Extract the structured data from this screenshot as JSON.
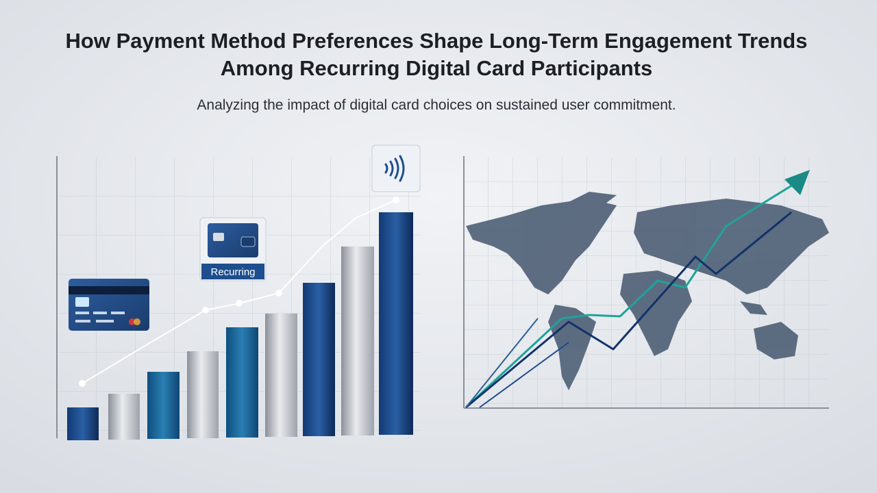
{
  "header": {
    "title_lines": [
      "How Payment Method Preferences Shape Long-Term Engagement Trends",
      "Among Recurring Digital Card Participants"
    ],
    "subtitle": "Analyzing the impact of digital card choices on sustained user commitment."
  },
  "illustration": {
    "card_label": "Recurring"
  }
}
